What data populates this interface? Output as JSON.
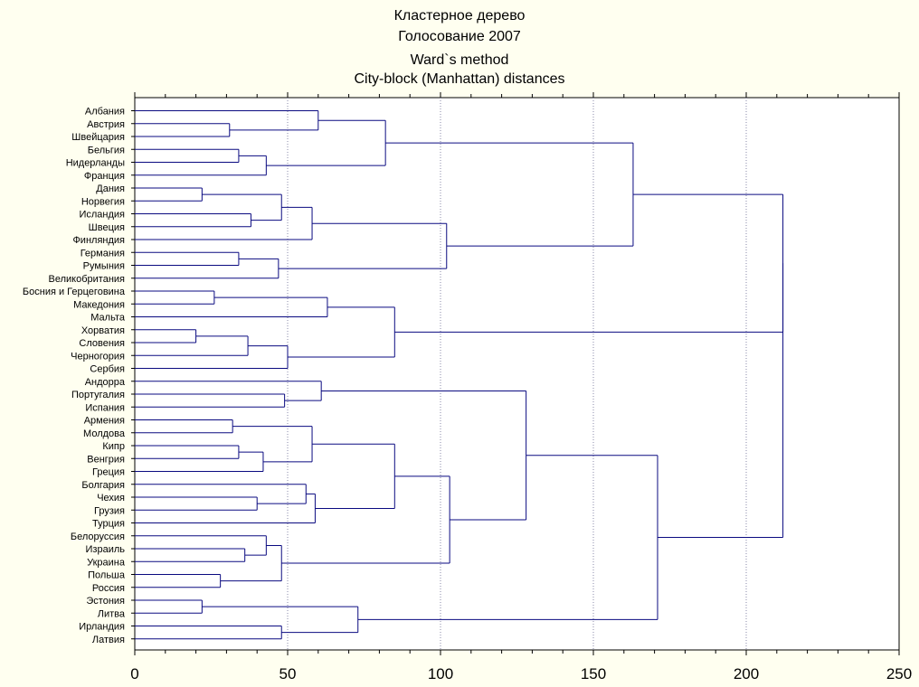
{
  "titles": {
    "line1": "Кластерное дерево",
    "line2": "Голосование 2007",
    "line3": "Ward`s method",
    "line4": "City-block (Manhattan) distances"
  },
  "colors": {
    "background": "#fffff0",
    "plot_background": "#ffffff",
    "tree": "#0a0a80",
    "grid": "#8888aa",
    "text": "#000000"
  },
  "chart_data": {
    "type": "dendrogram",
    "orientation": "horizontal",
    "method": "Ward`s method",
    "distance": "City-block (Manhattan) distances",
    "xlim": [
      0,
      250
    ],
    "xticks": [
      0,
      50,
      100,
      150,
      200,
      250
    ],
    "grid": "vertical dotted",
    "leaves": [
      "Албания",
      "Австрия",
      "Швейцария",
      "Бельгия",
      "Нидерланды",
      "Франция",
      "Дания",
      "Норвегия",
      "Исландия",
      "Швеция",
      "Финляндия",
      "Германия",
      "Румыния",
      "Великобритания",
      "Босния и Герцеговина",
      "Македония",
      "Мальта",
      "Хорватия",
      "Словения",
      "Черногория",
      "Сербия",
      "Андорра",
      "Португалия",
      "Испания",
      "Армения",
      "Молдова",
      "Кипр",
      "Венгрия",
      "Греция",
      "Болгария",
      "Чехия",
      "Грузия",
      "Турция",
      "Белоруссия",
      "Израиль",
      "Украина",
      "Польша",
      "Россия",
      "Эстония",
      "Литва",
      "Ирландия",
      "Латвия"
    ],
    "merges": [
      {
        "id": "c1",
        "a": "Австрия",
        "b": "Швейцария",
        "height": 31
      },
      {
        "id": "c2",
        "a": "Албания",
        "b": "c1",
        "height": 60
      },
      {
        "id": "c3",
        "a": "Бельгия",
        "b": "Нидерланды",
        "height": 34
      },
      {
        "id": "c4",
        "a": "c3",
        "b": "Франция",
        "height": 43
      },
      {
        "id": "c5",
        "a": "c2",
        "b": "c4",
        "height": 82
      },
      {
        "id": "c6",
        "a": "Дания",
        "b": "Норвегия",
        "height": 22
      },
      {
        "id": "c7",
        "a": "Исландия",
        "b": "Швеция",
        "height": 38
      },
      {
        "id": "c8",
        "a": "c6",
        "b": "c7",
        "height": 48
      },
      {
        "id": "c9",
        "a": "c8",
        "b": "Финляндия",
        "height": 58
      },
      {
        "id": "c10",
        "a": "Германия",
        "b": "Румыния",
        "height": 34
      },
      {
        "id": "c11",
        "a": "c10",
        "b": "Великобритания",
        "height": 47
      },
      {
        "id": "c12",
        "a": "c9",
        "b": "c11",
        "height": 102
      },
      {
        "id": "c13",
        "a": "c5",
        "b": "c12",
        "height": 163
      },
      {
        "id": "c14",
        "a": "Босния и Герцеговина",
        "b": "Македония",
        "height": 26
      },
      {
        "id": "c15",
        "a": "c14",
        "b": "Мальта",
        "height": 63
      },
      {
        "id": "c16",
        "a": "Хорватия",
        "b": "Словения",
        "height": 20
      },
      {
        "id": "c17",
        "a": "c16",
        "b": "Черногория",
        "height": 37
      },
      {
        "id": "c18",
        "a": "c17",
        "b": "Сербия",
        "height": 50
      },
      {
        "id": "c19",
        "a": "c15",
        "b": "c18",
        "height": 85
      },
      {
        "id": "c20",
        "a": "c13",
        "b": "c19",
        "height": 212
      },
      {
        "id": "c21",
        "a": "Португалия",
        "b": "Испания",
        "height": 49
      },
      {
        "id": "c22",
        "a": "Андорра",
        "b": "c21",
        "height": 61
      },
      {
        "id": "c23",
        "a": "Армения",
        "b": "Молдова",
        "height": 32
      },
      {
        "id": "c24",
        "a": "Кипр",
        "b": "Венгрия",
        "height": 34
      },
      {
        "id": "c25",
        "a": "c24",
        "b": "Греция",
        "height": 42
      },
      {
        "id": "c26",
        "a": "c23",
        "b": "c25",
        "height": 58
      },
      {
        "id": "c27",
        "a": "Чехия",
        "b": "Грузия",
        "height": 40
      },
      {
        "id": "c28",
        "a": "Болгария",
        "b": "c27",
        "height": 56
      },
      {
        "id": "c29",
        "a": "c28",
        "b": "Турция",
        "height": 59
      },
      {
        "id": "c30",
        "a": "c26",
        "b": "c29",
        "height": 85
      },
      {
        "id": "c31",
        "a": "Израиль",
        "b": "Украина",
        "height": 36
      },
      {
        "id": "c32",
        "a": "Белоруссия",
        "b": "c31",
        "height": 43
      },
      {
        "id": "c33",
        "a": "Польша",
        "b": "Россия",
        "height": 28
      },
      {
        "id": "c34",
        "a": "c32",
        "b": "c33",
        "height": 48
      },
      {
        "id": "c35",
        "a": "c30",
        "b": "c34",
        "height": 103
      },
      {
        "id": "c36",
        "a": "c22",
        "b": "c35",
        "height": 128
      },
      {
        "id": "c37",
        "a": "Эстония",
        "b": "Литва",
        "height": 22
      },
      {
        "id": "c38",
        "a": "Ирландия",
        "b": "Латвия",
        "height": 48
      },
      {
        "id": "c39",
        "a": "c37",
        "b": "c38",
        "height": 73
      },
      {
        "id": "c40",
        "a": "c36",
        "b": "c39",
        "height": 171
      },
      {
        "id": "c41",
        "a": "c20",
        "b": "c40",
        "height": 212
      }
    ]
  }
}
